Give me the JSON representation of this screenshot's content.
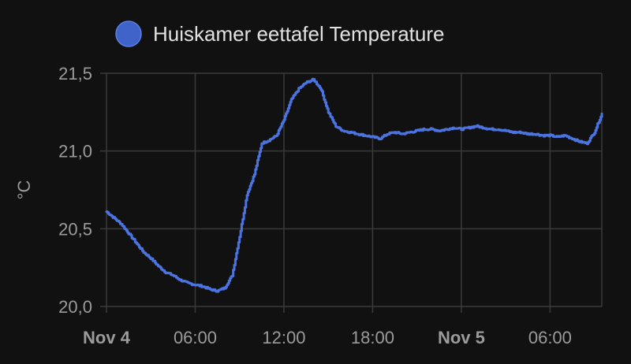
{
  "chart_data": {
    "type": "line",
    "legend": {
      "label": "Huiskamer eettafel Temperature",
      "position": "top",
      "color": "#3f63c9"
    },
    "ylabel": "°C",
    "ylim": [
      20.0,
      21.5
    ],
    "y_ticks": [
      "20,0",
      "20,5",
      "21,0",
      "21,5"
    ],
    "x_range_hours": [
      0,
      33.5
    ],
    "x_ticks": [
      {
        "label": "Nov 4",
        "hour": 0,
        "bold": true
      },
      {
        "label": "06:00",
        "hour": 6,
        "bold": false
      },
      {
        "label": "12:00",
        "hour": 12,
        "bold": false
      },
      {
        "label": "18:00",
        "hour": 18,
        "bold": false
      },
      {
        "label": "Nov 5",
        "hour": 24,
        "bold": true
      },
      {
        "label": "06:00",
        "hour": 30,
        "bold": false
      }
    ],
    "grid": true,
    "line_color": "#4b74e0",
    "series": [
      {
        "name": "Huiskamer eettafel Temperature",
        "points": [
          [
            0.0,
            20.61
          ],
          [
            0.5,
            20.57
          ],
          [
            1.0,
            20.53
          ],
          [
            1.5,
            20.47
          ],
          [
            2.0,
            20.41
          ],
          [
            2.5,
            20.35
          ],
          [
            3.0,
            20.31
          ],
          [
            3.5,
            20.26
          ],
          [
            4.0,
            20.22
          ],
          [
            4.5,
            20.2
          ],
          [
            5.0,
            20.17
          ],
          [
            5.5,
            20.15
          ],
          [
            6.0,
            20.14
          ],
          [
            6.5,
            20.13
          ],
          [
            7.0,
            20.11
          ],
          [
            7.5,
            20.1
          ],
          [
            8.0,
            20.12
          ],
          [
            8.5,
            20.2
          ],
          [
            9.0,
            20.45
          ],
          [
            9.5,
            20.72
          ],
          [
            10.0,
            20.85
          ],
          [
            10.5,
            21.05
          ],
          [
            11.0,
            21.07
          ],
          [
            11.5,
            21.1
          ],
          [
            12.0,
            21.2
          ],
          [
            12.5,
            21.33
          ],
          [
            13.0,
            21.4
          ],
          [
            13.5,
            21.44
          ],
          [
            14.0,
            21.46
          ],
          [
            14.5,
            21.4
          ],
          [
            15.0,
            21.25
          ],
          [
            15.5,
            21.16
          ],
          [
            16.0,
            21.13
          ],
          [
            16.5,
            21.12
          ],
          [
            17.0,
            21.11
          ],
          [
            17.5,
            21.1
          ],
          [
            18.0,
            21.09
          ],
          [
            18.5,
            21.08
          ],
          [
            19.0,
            21.11
          ],
          [
            19.5,
            21.12
          ],
          [
            20.0,
            21.11
          ],
          [
            20.5,
            21.12
          ],
          [
            21.0,
            21.13
          ],
          [
            21.5,
            21.14
          ],
          [
            22.0,
            21.14
          ],
          [
            22.5,
            21.13
          ],
          [
            23.0,
            21.14
          ],
          [
            23.5,
            21.15
          ],
          [
            24.0,
            21.14
          ],
          [
            24.5,
            21.15
          ],
          [
            25.0,
            21.16
          ],
          [
            25.5,
            21.15
          ],
          [
            26.0,
            21.14
          ],
          [
            26.5,
            21.14
          ],
          [
            27.0,
            21.13
          ],
          [
            27.5,
            21.12
          ],
          [
            28.0,
            21.12
          ],
          [
            28.5,
            21.11
          ],
          [
            29.0,
            21.11
          ],
          [
            29.5,
            21.1
          ],
          [
            30.0,
            21.1
          ],
          [
            30.5,
            21.09
          ],
          [
            31.0,
            21.1
          ],
          [
            31.5,
            21.08
          ],
          [
            32.0,
            21.06
          ],
          [
            32.5,
            21.05
          ],
          [
            33.0,
            21.12
          ],
          [
            33.5,
            21.24
          ]
        ]
      }
    ]
  }
}
